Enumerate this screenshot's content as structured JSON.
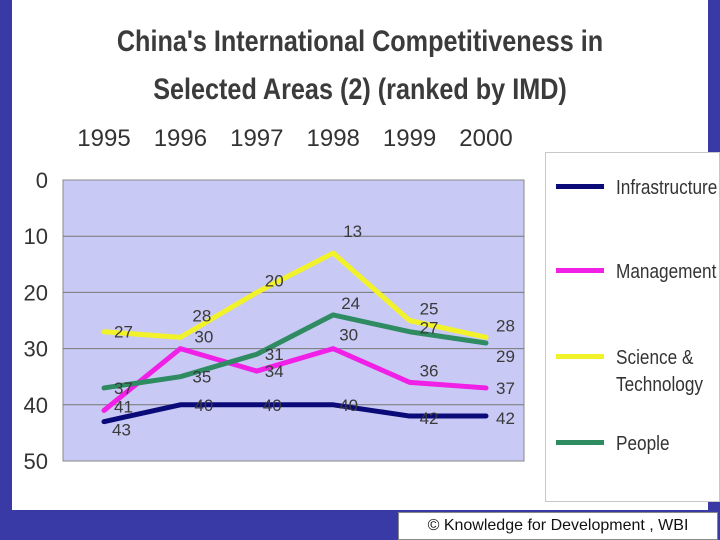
{
  "chart_data": {
    "type": "line",
    "title": "China's International Competitiveness in Selected Areas (2) (ranked by IMD)",
    "title_lines": [
      "China's International Competitiveness in",
      "Selected Areas (2) (ranked by IMD)"
    ],
    "categories": [
      "1995",
      "1996",
      "1997",
      "1998",
      "1999",
      "2000"
    ],
    "y_ticks": [
      "0",
      "10",
      "20",
      "30",
      "40",
      "50"
    ],
    "ylim": [
      0,
      50
    ],
    "y_inverted": true,
    "grid": "horizontal",
    "legend_position": "right",
    "series": [
      {
        "name": "Infrastructure",
        "color": "#0a0a78",
        "values": [
          43,
          40,
          40,
          40,
          42,
          42
        ],
        "labels": [
          "43",
          "40",
          "40",
          "40",
          "42",
          "42"
        ]
      },
      {
        "name": "Management",
        "color": "#f020e6",
        "values": [
          41,
          30,
          34,
          30,
          36,
          37
        ],
        "labels": [
          "41",
          "30",
          "34",
          "30",
          "36",
          "37"
        ]
      },
      {
        "name": "Science & Technology",
        "color": "#f2f22a",
        "values": [
          27,
          28,
          20,
          13,
          25,
          28
        ],
        "labels": [
          "27",
          "28",
          "20",
          "13",
          "25",
          "28"
        ]
      },
      {
        "name": "People",
        "color": "#2e8b62",
        "values": [
          37,
          35,
          31,
          24,
          27,
          29
        ],
        "labels": [
          "37",
          "35",
          "31",
          "24",
          "27",
          "29"
        ]
      }
    ]
  },
  "legend": {
    "items": [
      {
        "label": "Infrastructure",
        "color": "#0a0a78"
      },
      {
        "label": "Management",
        "color": "#f020e6"
      },
      {
        "label": "Science &\nTechnology",
        "color": "#f2f22a"
      },
      {
        "label": "People",
        "color": "#2e8b62"
      }
    ]
  },
  "footer": {
    "copyright": "© Knowledge for Development , WBI"
  },
  "colors": {
    "frame": "#3a3aa6",
    "plot_bg": "#c9c9f5"
  }
}
